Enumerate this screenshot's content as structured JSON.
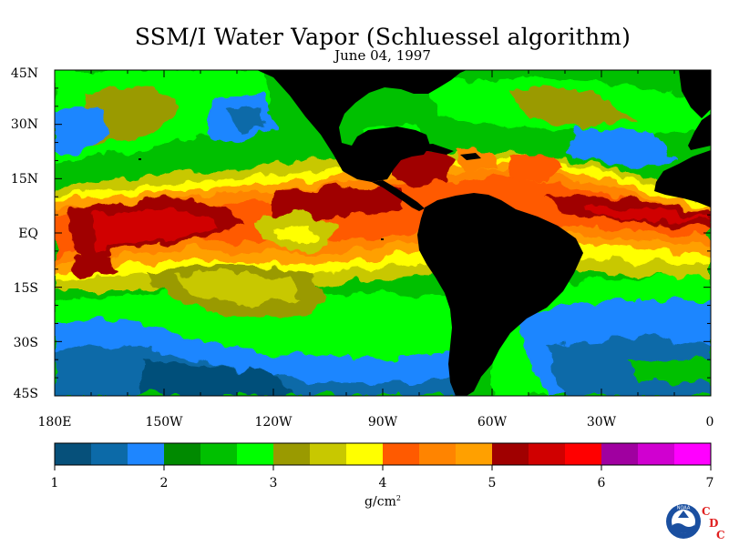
{
  "title": "SSM/I Water Vapor (Schluessel algorithm)",
  "subtitle": "June 04, 1997",
  "lat_labels": [
    "45N",
    "30N",
    "15N",
    "EQ",
    "15S",
    "30S",
    "45S"
  ],
  "lon_labels": [
    "180E",
    "150W",
    "120W",
    "90W",
    "60W",
    "30W",
    "0"
  ],
  "colorbar": {
    "units": "g/cm",
    "units_superscript": "2",
    "ticks": [
      "1",
      "2",
      "3",
      "4",
      "5",
      "6",
      "7"
    ],
    "range": [
      1,
      7
    ],
    "colors": [
      "#06507a",
      "#0c6aa8",
      "#1e86ff",
      "#008a00",
      "#00c000",
      "#00ff00",
      "#9a9a00",
      "#c8c800",
      "#ffff00",
      "#ff5a00",
      "#ff8400",
      "#ffa000",
      "#a00000",
      "#d00000",
      "#ff0000",
      "#a000a0",
      "#d000d0",
      "#ff00ff"
    ]
  },
  "map": {
    "lon_range": [
      -180,
      0
    ],
    "lat_range": [
      -45,
      45
    ],
    "land_color": "#000000"
  },
  "logos": {
    "noaa_text": "NOAA",
    "cdc_letters": [
      "C",
      "D",
      "C"
    ]
  }
}
